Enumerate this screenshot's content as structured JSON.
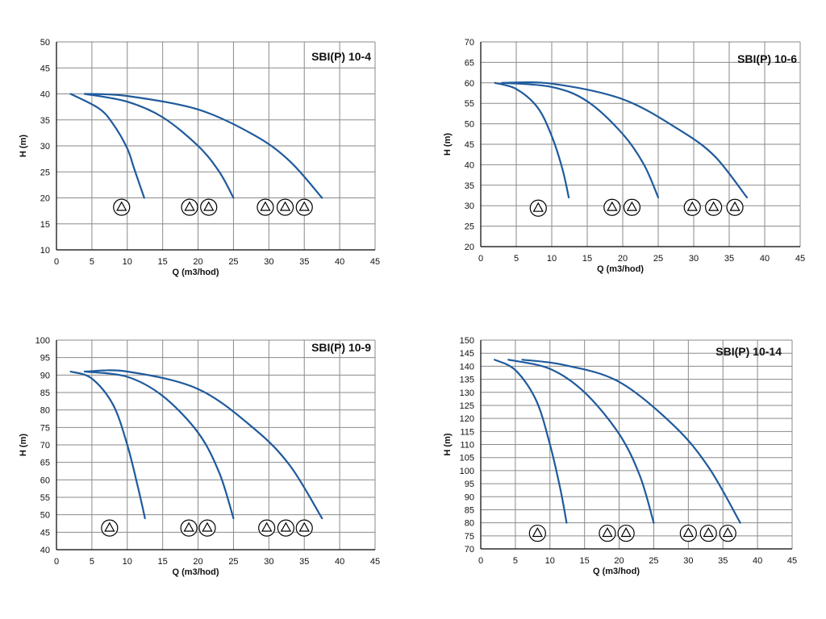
{
  "chart_data": [
    {
      "type": "line",
      "title": "SBI(P) 10-4",
      "xlabel": "Q (m3/hod)",
      "ylabel": "H (m)",
      "xlim": [
        0,
        45
      ],
      "ylim": [
        10,
        50
      ],
      "xticks": [
        0,
        5,
        10,
        15,
        20,
        25,
        30,
        35,
        40,
        45
      ],
      "yticks": [
        10,
        15,
        20,
        25,
        30,
        35,
        40,
        45,
        50
      ],
      "grid": true,
      "line_color": "#1f5a9c",
      "series": [
        {
          "x": [
            2,
            6,
            8,
            10,
            11,
            12.4
          ],
          "y": [
            40,
            37.2,
            34.2,
            29.5,
            25.5,
            20
          ]
        },
        {
          "x": [
            4,
            10,
            15,
            20,
            23,
            25
          ],
          "y": [
            40,
            38.5,
            35.5,
            30,
            25,
            20
          ]
        },
        {
          "x": [
            4,
            10,
            20,
            28,
            33,
            37.5
          ],
          "y": [
            40,
            39.6,
            37,
            32,
            27,
            20
          ]
        }
      ],
      "pump_markers": [
        {
          "x": 9.2,
          "y": 18.2,
          "count": 1
        },
        {
          "x": 18.8,
          "y": 18.2,
          "count": 1
        },
        {
          "x": 21.5,
          "y": 18.2,
          "count": 1
        },
        {
          "x": 29.5,
          "y": 18.2,
          "count": 1
        },
        {
          "x": 32.3,
          "y": 18.2,
          "count": 1
        },
        {
          "x": 35.0,
          "y": 18.2,
          "count": 1
        }
      ]
    },
    {
      "type": "line",
      "title": "SBI(P) 10-6",
      "xlabel": "Q (m3/hod)",
      "ylabel": "H (m)",
      "xlim": [
        0,
        45
      ],
      "ylim": [
        20,
        70
      ],
      "xticks": [
        0,
        5,
        10,
        15,
        20,
        25,
        30,
        35,
        40,
        45
      ],
      "yticks": [
        20,
        25,
        30,
        35,
        40,
        45,
        50,
        55,
        60,
        65,
        70
      ],
      "grid": true,
      "line_color": "#1f5a9c",
      "series": [
        {
          "x": [
            2,
            5,
            8,
            10,
            11.5,
            12.4
          ],
          "y": [
            60,
            58.5,
            54,
            47,
            39,
            32
          ]
        },
        {
          "x": [
            3,
            10,
            15,
            20,
            23,
            25
          ],
          "y": [
            60,
            59,
            55.5,
            47.5,
            40,
            32
          ]
        },
        {
          "x": [
            3,
            10,
            20,
            28,
            33,
            37.5
          ],
          "y": [
            60,
            59.8,
            56,
            48.5,
            42,
            32
          ]
        }
      ],
      "pump_markers": [
        {
          "x": 8.1,
          "y": 29.4,
          "count": 1
        },
        {
          "x": 18.5,
          "y": 29.6,
          "count": 1
        },
        {
          "x": 21.3,
          "y": 29.6,
          "count": 1
        },
        {
          "x": 29.8,
          "y": 29.6,
          "count": 1
        },
        {
          "x": 32.8,
          "y": 29.6,
          "count": 1
        },
        {
          "x": 35.8,
          "y": 29.6,
          "count": 1
        }
      ]
    },
    {
      "type": "line",
      "title": "SBI(P) 10-9",
      "xlabel": "Q (m3/hod)",
      "ylabel": "H (m)",
      "xlim": [
        0,
        45
      ],
      "ylim": [
        40,
        100
      ],
      "xticks": [
        0,
        5,
        10,
        15,
        20,
        25,
        30,
        35,
        40,
        45
      ],
      "yticks": [
        40,
        45,
        50,
        55,
        60,
        65,
        70,
        75,
        80,
        85,
        90,
        95,
        100
      ],
      "grid": true,
      "line_color": "#1f5a9c",
      "series": [
        {
          "x": [
            2,
            5,
            8,
            10,
            11.5,
            12.5
          ],
          "y": [
            91,
            89,
            81.5,
            70,
            58,
            49
          ]
        },
        {
          "x": [
            4,
            10,
            15,
            20,
            23,
            25
          ],
          "y": [
            91,
            89.5,
            84,
            73.5,
            62,
            49
          ]
        },
        {
          "x": [
            4,
            10,
            20,
            28,
            33,
            37.5
          ],
          "y": [
            91,
            91,
            86,
            74.5,
            64,
            49
          ]
        }
      ],
      "pump_markers": [
        {
          "x": 7.5,
          "y": 46.2,
          "count": 1
        },
        {
          "x": 18.7,
          "y": 46.2,
          "count": 1
        },
        {
          "x": 21.3,
          "y": 46.2,
          "count": 1
        },
        {
          "x": 29.7,
          "y": 46.2,
          "count": 1
        },
        {
          "x": 32.4,
          "y": 46.2,
          "count": 1
        },
        {
          "x": 35.0,
          "y": 46.2,
          "count": 1
        }
      ]
    },
    {
      "type": "line",
      "title": "SBI(P) 10-14",
      "xlabel": "Q (m3/hod)",
      "ylabel": "H (m)",
      "xlim": [
        0,
        45
      ],
      "ylim": [
        70,
        150
      ],
      "xticks": [
        0,
        5,
        10,
        15,
        20,
        25,
        30,
        35,
        40,
        45
      ],
      "yticks": [
        70,
        75,
        80,
        85,
        90,
        95,
        100,
        105,
        110,
        115,
        120,
        125,
        130,
        135,
        140,
        145,
        150
      ],
      "grid": true,
      "line_color": "#1f5a9c",
      "series": [
        {
          "x": [
            2,
            5,
            8,
            10,
            11.5,
            12.4
          ],
          "y": [
            142.5,
            138.5,
            127,
            110,
            93,
            80
          ]
        },
        {
          "x": [
            4,
            10,
            15,
            20,
            23,
            25
          ],
          "y": [
            142.5,
            139,
            130,
            114,
            98,
            80
          ]
        },
        {
          "x": [
            6,
            12,
            20,
            28,
            33,
            37.5
          ],
          "y": [
            142.5,
            140.5,
            134,
            117,
            101,
            80
          ]
        }
      ],
      "pump_markers": [
        {
          "x": 8.2,
          "y": 76,
          "count": 1
        },
        {
          "x": 18.3,
          "y": 76,
          "count": 1
        },
        {
          "x": 21.0,
          "y": 76,
          "count": 1
        },
        {
          "x": 30.0,
          "y": 76,
          "count": 1
        },
        {
          "x": 32.9,
          "y": 76,
          "count": 1
        },
        {
          "x": 35.7,
          "y": 76,
          "count": 1
        }
      ]
    }
  ]
}
